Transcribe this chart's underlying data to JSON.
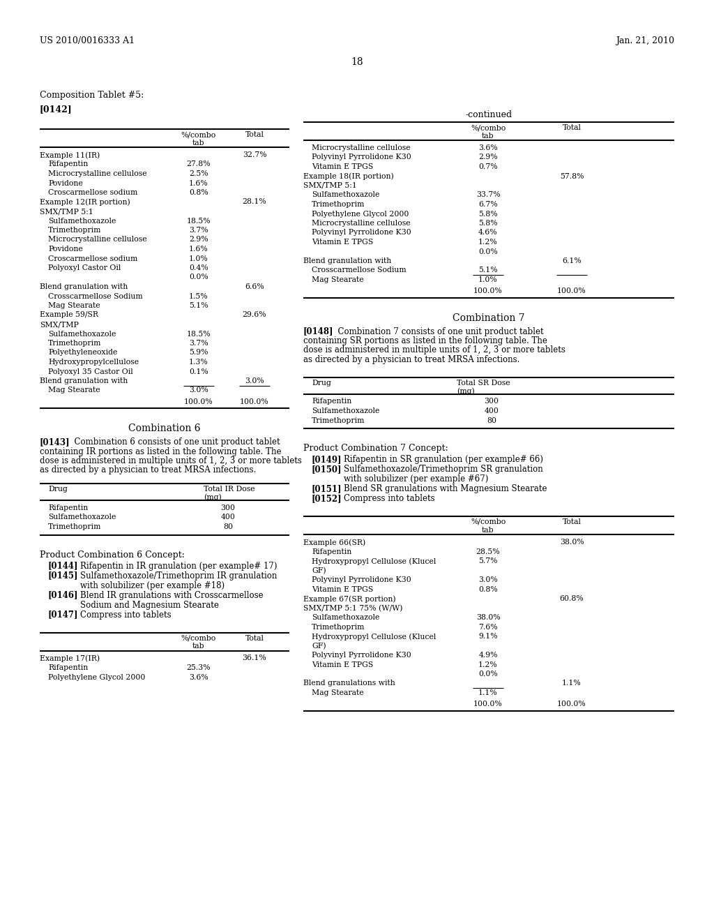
{
  "header_left": "US 2010/0016333 A1",
  "header_right": "Jan. 21, 2010",
  "page_number": "18",
  "bg_color": "#ffffff"
}
